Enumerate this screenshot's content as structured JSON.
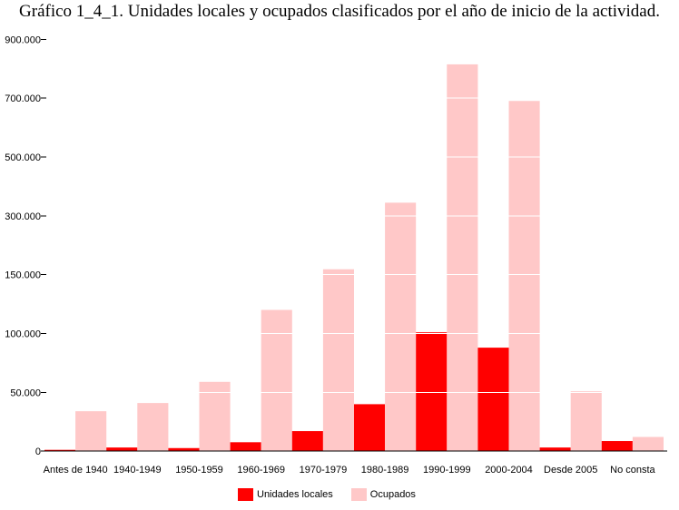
{
  "chart_data": {
    "type": "bar",
    "title": "Gráfico 1_4_1. Unidades locales y ocupados clasificados por el año de inicio de la actividad.",
    "xlabel": "",
    "ylabel": "",
    "categories": [
      "Antes de 1940",
      "1940-1949",
      "1950-1959",
      "1960-1969",
      "1970-1979",
      "1980-1989",
      "1990-1999",
      "2000-2004",
      "Desde 2005",
      "No consta"
    ],
    "y_tick_labels": [
      "0",
      "50.000",
      "100.000",
      "150.000",
      "300.000",
      "500.000",
      "700.000",
      "900.000"
    ],
    "series": [
      {
        "name": "Unidades locales",
        "color": "#ff0000",
        "values": [
          1000,
          3000,
          2500,
          7500,
          17000,
          40000,
          101000,
          88000,
          3000,
          8500
        ]
      },
      {
        "name": "Ocupados",
        "color": "#ffc8c8",
        "values": [
          34000,
          41000,
          59000,
          120000,
          163500,
          345000,
          815000,
          690000,
          51000,
          12000
        ]
      }
    ],
    "grid": true,
    "legend": "bottom"
  }
}
